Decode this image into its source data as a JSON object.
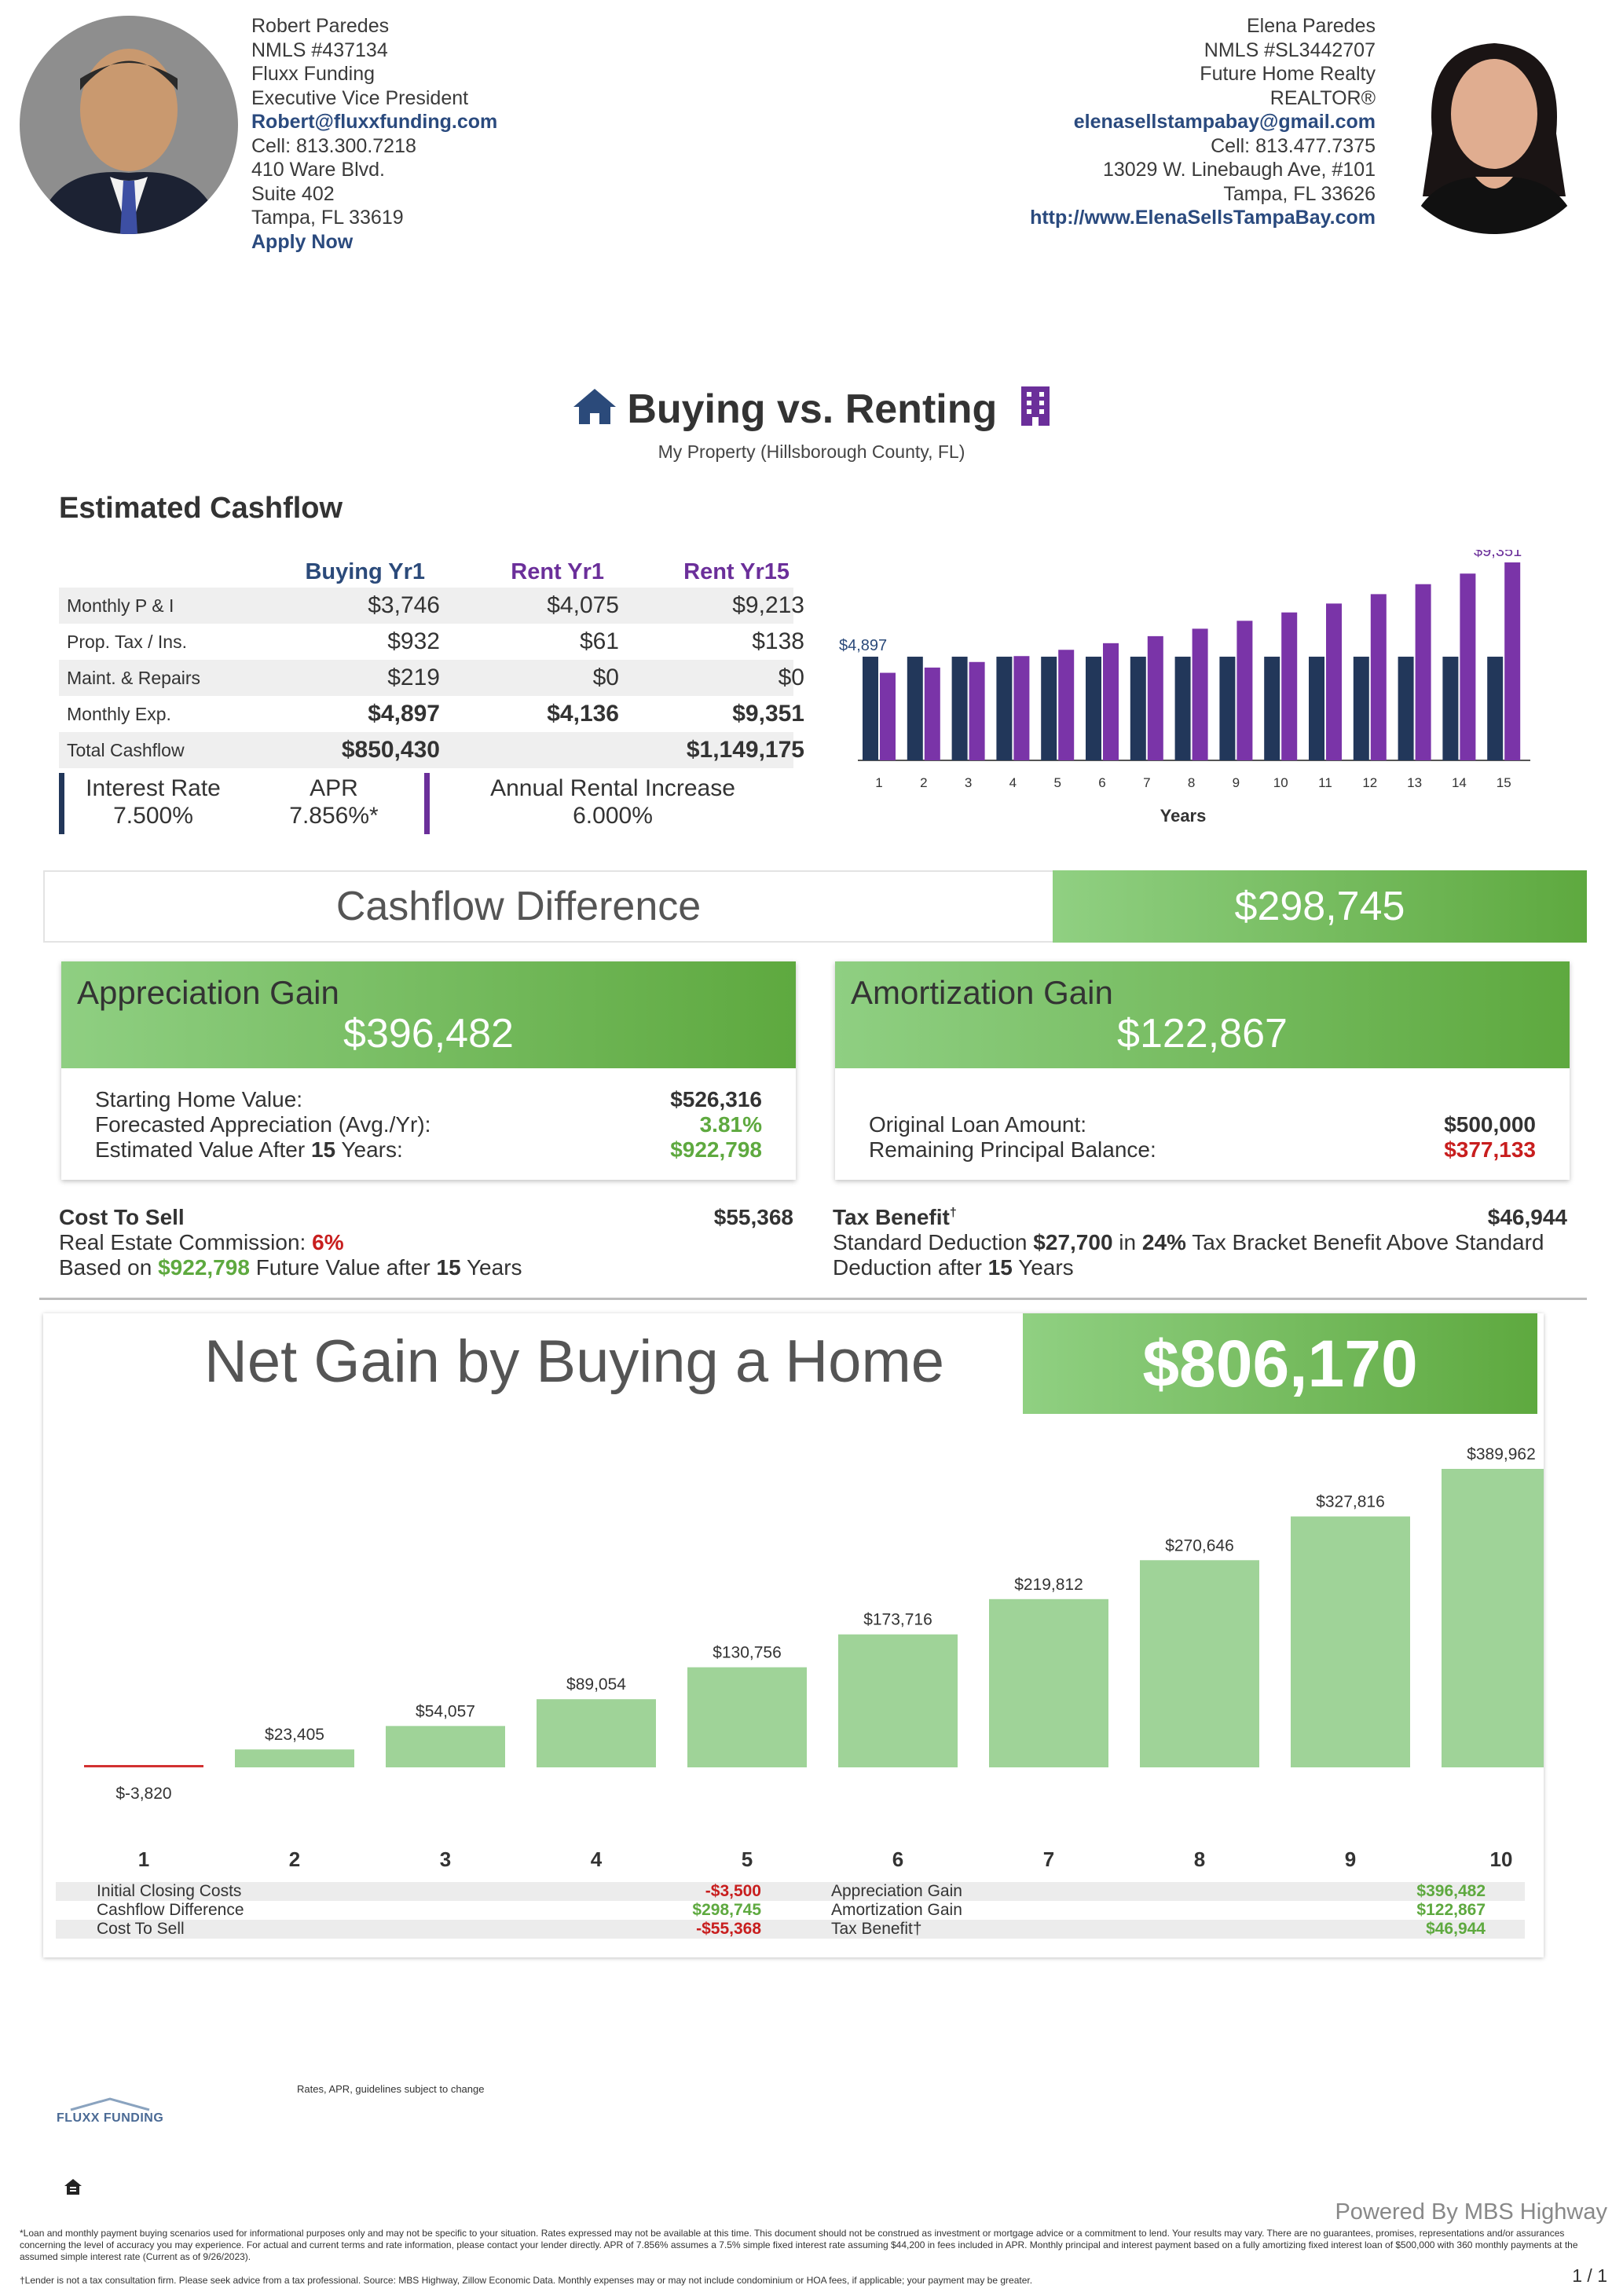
{
  "left_contact": {
    "name": "Robert Paredes",
    "nmls": "NMLS #437134",
    "company": "Fluxx Funding",
    "title": "Executive Vice President",
    "email": "Robert@fluxxfunding.com",
    "cell": "Cell: 813.300.7218",
    "address1": "410 Ware Blvd.",
    "address2": "Suite 402",
    "city": "Tampa,  FL  33619",
    "apply": "Apply Now"
  },
  "right_contact": {
    "name": "Elena Paredes",
    "nmls": "NMLS #SL3442707",
    "company": "Future Home Realty",
    "title": "REALTOR®",
    "email": "elenasellstampabay@gmail.com",
    "cell": "Cell: 813.477.7375",
    "address1": "13029 W. Linebaugh Ave, #101",
    "city": "Tampa,  FL  33626",
    "website": "http://www.ElenaSellsTampaBay.com"
  },
  "title": "Buying vs. Renting",
  "subtitle": "My Property (Hillsborough County, FL)",
  "cashflow": {
    "section_title": "Estimated Cashflow",
    "headers": [
      "Buying Yr1",
      "Rent Yr1",
      "Rent Yr15"
    ],
    "rows": [
      {
        "label": "Monthly P & I",
        "values": [
          "$3,746",
          "$4,075",
          "$9,213"
        ]
      },
      {
        "label": "Prop. Tax / Ins.",
        "values": [
          "$932",
          "$61",
          "$138"
        ]
      },
      {
        "label": "Maint. & Repairs",
        "values": [
          "$219",
          "$0",
          "$0"
        ]
      },
      {
        "label": "Monthly Exp.",
        "values": [
          "$4,897",
          "$4,136",
          "$9,351"
        ]
      },
      {
        "label": "Total Cashflow",
        "values": [
          "$850,430",
          "",
          "$1,149,175"
        ]
      }
    ],
    "interest_rate_label": "Interest Rate",
    "interest_rate": "7.500%",
    "apr_label": "APR",
    "apr": "7.856%*",
    "rental_increase_label": "Annual Rental Increase",
    "rental_increase": "6.000%"
  },
  "chart_data": [
    {
      "type": "bar",
      "xlabel": "Years",
      "categories": [
        "1",
        "2",
        "3",
        "4",
        "5",
        "6",
        "7",
        "8",
        "9",
        "10",
        "11",
        "12",
        "13",
        "14",
        "15"
      ],
      "series": [
        {
          "values": [
            4897,
            4897,
            4897,
            4897,
            4897,
            4897,
            4897,
            4897,
            4897,
            4897,
            4897,
            4897,
            4897,
            4897,
            4897
          ]
        },
        {
          "values": [
            4136,
            4384,
            4647,
            4926,
            5222,
            5535,
            5867,
            6219,
            6593,
            6988,
            7408,
            7852,
            8323,
            8823,
            9351
          ]
        }
      ],
      "annotations": [
        "$4,897",
        "$9,351"
      ],
      "ylim": [
        0,
        9351
      ],
      "colors": [
        "#22375a",
        "#7a34a8"
      ]
    },
    {
      "type": "bar",
      "categories": [
        "1",
        "2",
        "3",
        "4",
        "5",
        "6",
        "7",
        "8",
        "9",
        "10"
      ],
      "values": [
        -3820,
        23405,
        54057,
        89054,
        130756,
        173716,
        219812,
        270646,
        327816,
        389962
      ],
      "labels": [
        "$-3,820",
        "$23,405",
        "$54,057",
        "$89,054",
        "$130,756",
        "$173,716",
        "$219,812",
        "$270,646",
        "$327,816",
        "$389,962"
      ],
      "ylim": [
        0,
        389962
      ],
      "colors": [
        "#9fd398",
        "#d23131"
      ]
    }
  ],
  "difference": {
    "label": "Cashflow Difference",
    "value": "$298,745"
  },
  "appreciation": {
    "title": "Appreciation Gain",
    "value": "$396,482",
    "starting_label": "Starting Home Value:",
    "starting_value": "$526,316",
    "forecast_label": "Forecasted Appreciation (Avg./Yr):",
    "forecast_value": "3.81%",
    "after_label_pre": "Estimated Value After",
    "after_years": "15",
    "after_label_post": "Years:",
    "after_value": "$922,798"
  },
  "amortization": {
    "title": "Amortization Gain",
    "value": "$122,867",
    "loan_label": "Original Loan Amount:",
    "loan_value": "$500,000",
    "balance_label": "Remaining Principal Balance:",
    "balance_value": "$377,133"
  },
  "cost_to_sell": {
    "title": "Cost To Sell",
    "value": "$55,368",
    "commission_label": "Real Estate Commission:",
    "commission_value": "6%",
    "based_pre": "Based on",
    "based_value": "$922,798",
    "based_mid": "Future Value after",
    "based_years": "15",
    "based_post": "Years"
  },
  "tax_benefit": {
    "title": "Tax Benefit",
    "dagger": "†",
    "value": "$46,944",
    "line1_pre": "Standard Deduction",
    "deduction": "$27,700",
    "line1_mid": "in",
    "bracket": "24%",
    "line1_post": "Tax Bracket Benefit Above Standard",
    "line2_pre": "Deduction after",
    "years": "15",
    "line2_post": "Years"
  },
  "net_gain": {
    "title": "Net Gain by Buying a Home",
    "value": "$806,170"
  },
  "summary": {
    "left": [
      {
        "label": "Initial Closing Costs",
        "value": "-$3,500"
      },
      {
        "label": "Cashflow Difference",
        "value": "$298,745"
      },
      {
        "label": "Cost To Sell",
        "value": "-$55,368"
      }
    ],
    "right": [
      {
        "label": "Appreciation Gain",
        "value": "$396,482"
      },
      {
        "label": "Amortization Gain",
        "value": "$122,867"
      },
      {
        "label": "Tax Benefit†",
        "value": "$46,944"
      }
    ]
  },
  "footer": {
    "rates_note": "Rates, APR, guidelines subject to change",
    "logo_text": "FLUXX FUNDING",
    "powered": "Powered By MBS Highway",
    "page": "1 / 1",
    "disclaimer1": "*Loan and monthly payment buying scenarios used for informational purposes only and may not be specific to your situation. Rates expressed may not be available at this time. This document should not be construed as investment or mortgage advice or a commitment to lend. Your results may vary. There are no guarantees, promises, representations and/or assurances concerning the level of accuracy you may experience. For actual and current terms and rate information, please contact your lender directly. APR of 7.856% assumes a 7.5% simple fixed interest rate assuming $44,200 in fees included in APR. Monthly principal and interest payment based on a fully amortizing fixed interest loan of $500,000 with 360 monthly payments at the assumed simple interest rate (Current as of 9/26/2023).",
    "disclaimer2": "†Lender is not a tax consultation firm. Please seek advice from a tax professional. Source: MBS Highway, Zillow Economic Data. Monthly expenses may or may not include condominium or HOA fees, if applicable; your payment may be greater."
  }
}
